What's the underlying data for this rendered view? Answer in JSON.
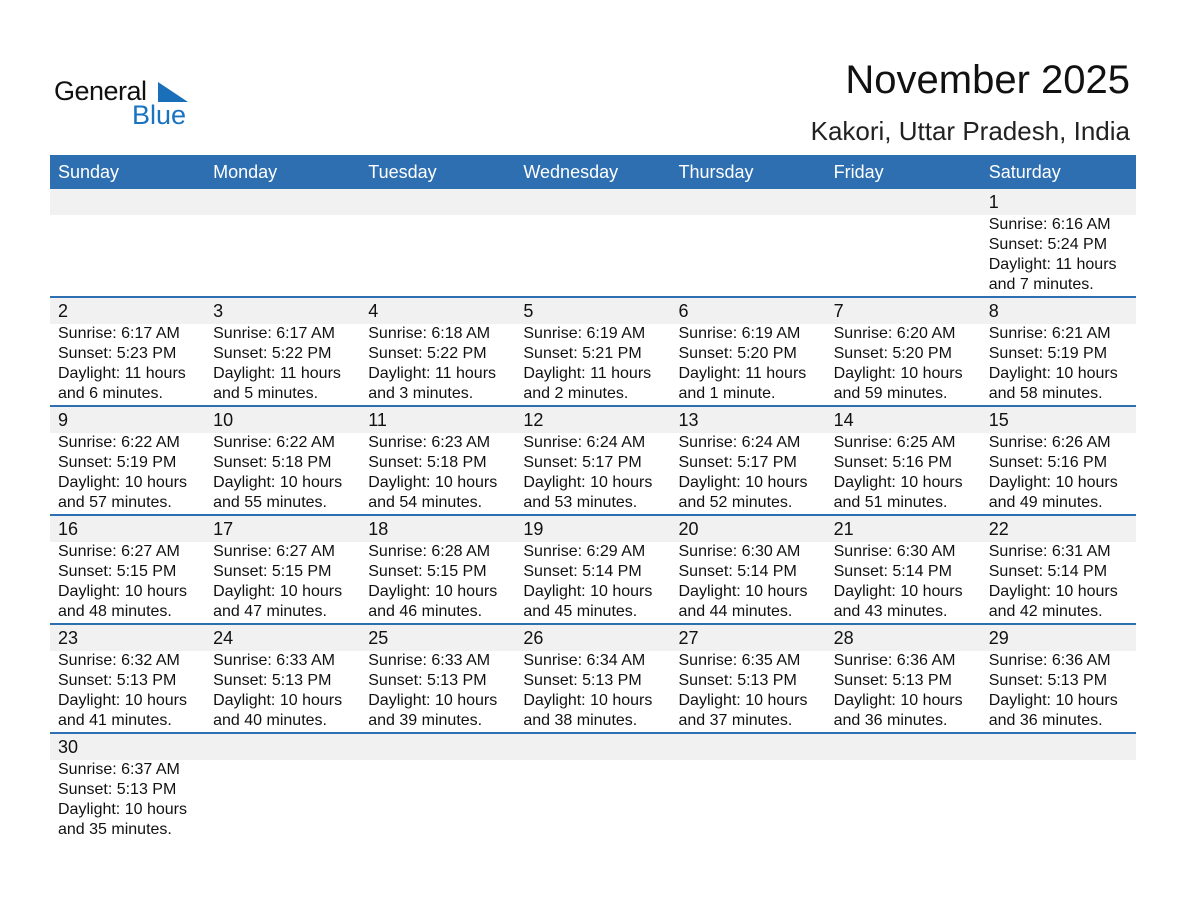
{
  "logo": {
    "text_general": "General",
    "text_blue": "Blue"
  },
  "header": {
    "title": "November 2025",
    "location": "Kakori, Uttar Pradesh, India"
  },
  "colors": {
    "accent": "#2e6fb1",
    "band": "#f1f1f1",
    "logo_blue": "#1a73c0"
  },
  "weekdays": [
    "Sunday",
    "Monday",
    "Tuesday",
    "Wednesday",
    "Thursday",
    "Friday",
    "Saturday"
  ],
  "first_weekday_offset": 6,
  "days": [
    {
      "day": "1",
      "sunrise": "Sunrise: 6:16 AM",
      "sunset": "Sunset: 5:24 PM",
      "daylight": "Daylight: 11 hours",
      "minutes": "and 7 minutes."
    },
    {
      "day": "2",
      "sunrise": "Sunrise: 6:17 AM",
      "sunset": "Sunset: 5:23 PM",
      "daylight": "Daylight: 11 hours",
      "minutes": "and 6 minutes."
    },
    {
      "day": "3",
      "sunrise": "Sunrise: 6:17 AM",
      "sunset": "Sunset: 5:22 PM",
      "daylight": "Daylight: 11 hours",
      "minutes": "and 5 minutes."
    },
    {
      "day": "4",
      "sunrise": "Sunrise: 6:18 AM",
      "sunset": "Sunset: 5:22 PM",
      "daylight": "Daylight: 11 hours",
      "minutes": "and 3 minutes."
    },
    {
      "day": "5",
      "sunrise": "Sunrise: 6:19 AM",
      "sunset": "Sunset: 5:21 PM",
      "daylight": "Daylight: 11 hours",
      "minutes": "and 2 minutes."
    },
    {
      "day": "6",
      "sunrise": "Sunrise: 6:19 AM",
      "sunset": "Sunset: 5:20 PM",
      "daylight": "Daylight: 11 hours",
      "minutes": "and 1 minute."
    },
    {
      "day": "7",
      "sunrise": "Sunrise: 6:20 AM",
      "sunset": "Sunset: 5:20 PM",
      "daylight": "Daylight: 10 hours",
      "minutes": "and 59 minutes."
    },
    {
      "day": "8",
      "sunrise": "Sunrise: 6:21 AM",
      "sunset": "Sunset: 5:19 PM",
      "daylight": "Daylight: 10 hours",
      "minutes": "and 58 minutes."
    },
    {
      "day": "9",
      "sunrise": "Sunrise: 6:22 AM",
      "sunset": "Sunset: 5:19 PM",
      "daylight": "Daylight: 10 hours",
      "minutes": "and 57 minutes."
    },
    {
      "day": "10",
      "sunrise": "Sunrise: 6:22 AM",
      "sunset": "Sunset: 5:18 PM",
      "daylight": "Daylight: 10 hours",
      "minutes": "and 55 minutes."
    },
    {
      "day": "11",
      "sunrise": "Sunrise: 6:23 AM",
      "sunset": "Sunset: 5:18 PM",
      "daylight": "Daylight: 10 hours",
      "minutes": "and 54 minutes."
    },
    {
      "day": "12",
      "sunrise": "Sunrise: 6:24 AM",
      "sunset": "Sunset: 5:17 PM",
      "daylight": "Daylight: 10 hours",
      "minutes": "and 53 minutes."
    },
    {
      "day": "13",
      "sunrise": "Sunrise: 6:24 AM",
      "sunset": "Sunset: 5:17 PM",
      "daylight": "Daylight: 10 hours",
      "minutes": "and 52 minutes."
    },
    {
      "day": "14",
      "sunrise": "Sunrise: 6:25 AM",
      "sunset": "Sunset: 5:16 PM",
      "daylight": "Daylight: 10 hours",
      "minutes": "and 51 minutes."
    },
    {
      "day": "15",
      "sunrise": "Sunrise: 6:26 AM",
      "sunset": "Sunset: 5:16 PM",
      "daylight": "Daylight: 10 hours",
      "minutes": "and 49 minutes."
    },
    {
      "day": "16",
      "sunrise": "Sunrise: 6:27 AM",
      "sunset": "Sunset: 5:15 PM",
      "daylight": "Daylight: 10 hours",
      "minutes": "and 48 minutes."
    },
    {
      "day": "17",
      "sunrise": "Sunrise: 6:27 AM",
      "sunset": "Sunset: 5:15 PM",
      "daylight": "Daylight: 10 hours",
      "minutes": "and 47 minutes."
    },
    {
      "day": "18",
      "sunrise": "Sunrise: 6:28 AM",
      "sunset": "Sunset: 5:15 PM",
      "daylight": "Daylight: 10 hours",
      "minutes": "and 46 minutes."
    },
    {
      "day": "19",
      "sunrise": "Sunrise: 6:29 AM",
      "sunset": "Sunset: 5:14 PM",
      "daylight": "Daylight: 10 hours",
      "minutes": "and 45 minutes."
    },
    {
      "day": "20",
      "sunrise": "Sunrise: 6:30 AM",
      "sunset": "Sunset: 5:14 PM",
      "daylight": "Daylight: 10 hours",
      "minutes": "and 44 minutes."
    },
    {
      "day": "21",
      "sunrise": "Sunrise: 6:30 AM",
      "sunset": "Sunset: 5:14 PM",
      "daylight": "Daylight: 10 hours",
      "minutes": "and 43 minutes."
    },
    {
      "day": "22",
      "sunrise": "Sunrise: 6:31 AM",
      "sunset": "Sunset: 5:14 PM",
      "daylight": "Daylight: 10 hours",
      "minutes": "and 42 minutes."
    },
    {
      "day": "23",
      "sunrise": "Sunrise: 6:32 AM",
      "sunset": "Sunset: 5:13 PM",
      "daylight": "Daylight: 10 hours",
      "minutes": "and 41 minutes."
    },
    {
      "day": "24",
      "sunrise": "Sunrise: 6:33 AM",
      "sunset": "Sunset: 5:13 PM",
      "daylight": "Daylight: 10 hours",
      "minutes": "and 40 minutes."
    },
    {
      "day": "25",
      "sunrise": "Sunrise: 6:33 AM",
      "sunset": "Sunset: 5:13 PM",
      "daylight": "Daylight: 10 hours",
      "minutes": "and 39 minutes."
    },
    {
      "day": "26",
      "sunrise": "Sunrise: 6:34 AM",
      "sunset": "Sunset: 5:13 PM",
      "daylight": "Daylight: 10 hours",
      "minutes": "and 38 minutes."
    },
    {
      "day": "27",
      "sunrise": "Sunrise: 6:35 AM",
      "sunset": "Sunset: 5:13 PM",
      "daylight": "Daylight: 10 hours",
      "minutes": "and 37 minutes."
    },
    {
      "day": "28",
      "sunrise": "Sunrise: 6:36 AM",
      "sunset": "Sunset: 5:13 PM",
      "daylight": "Daylight: 10 hours",
      "minutes": "and 36 minutes."
    },
    {
      "day": "29",
      "sunrise": "Sunrise: 6:36 AM",
      "sunset": "Sunset: 5:13 PM",
      "daylight": "Daylight: 10 hours",
      "minutes": "and 36 minutes."
    },
    {
      "day": "30",
      "sunrise": "Sunrise: 6:37 AM",
      "sunset": "Sunset: 5:13 PM",
      "daylight": "Daylight: 10 hours",
      "minutes": "and 35 minutes."
    }
  ]
}
